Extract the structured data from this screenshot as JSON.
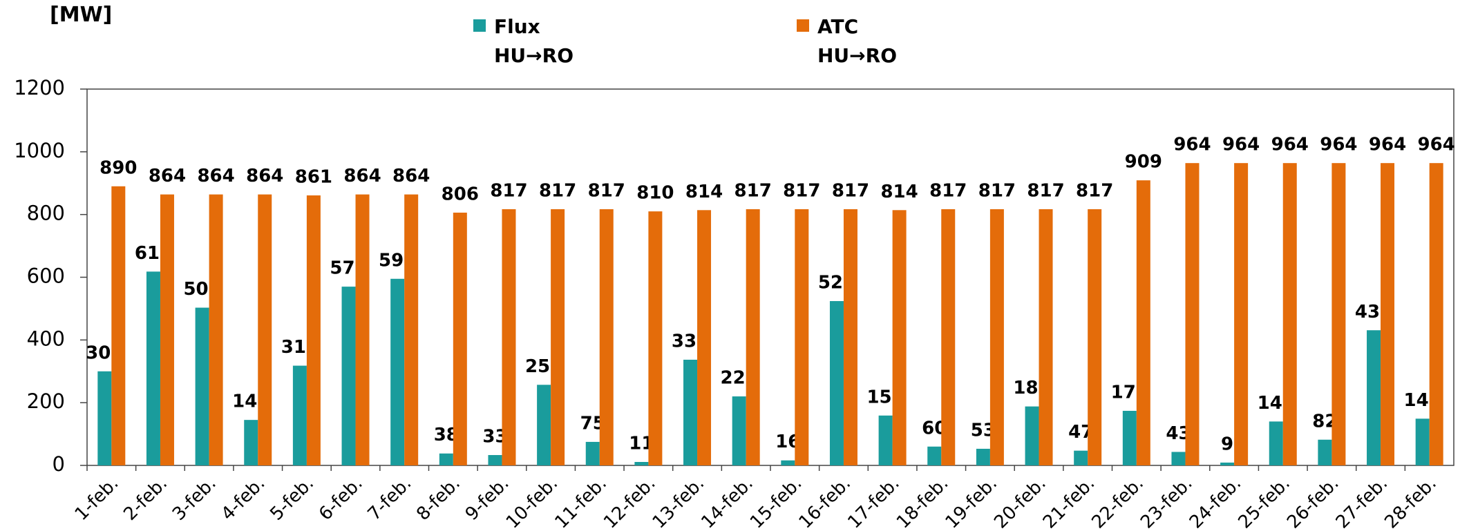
{
  "chart_data": {
    "type": "bar",
    "y_label": "[MW]",
    "categories": [
      "1-feb.",
      "2-feb.",
      "3-feb.",
      "4-feb.",
      "5-feb.",
      "6-feb.",
      "7-feb.",
      "8-feb.",
      "9-feb.",
      "10-feb.",
      "11-feb.",
      "12-feb.",
      "13-feb.",
      "14-feb.",
      "15-feb.",
      "16-feb.",
      "17-feb.",
      "18-feb.",
      "19-feb.",
      "20-feb.",
      "21-feb.",
      "22-feb.",
      "23-feb.",
      "24-feb.",
      "25-feb.",
      "26-feb.",
      "27-feb.",
      "28-feb."
    ],
    "series": [
      {
        "name": "Flux\nHU→RO",
        "color": "#1a9c9c",
        "values": [
          300,
          618,
          503,
          145,
          318,
          570,
          595,
          38,
          33,
          257,
          75,
          11,
          337,
          220,
          16,
          524,
          159,
          60,
          53,
          188,
          47,
          174,
          43,
          9,
          140,
          82,
          431,
          149
        ]
      },
      {
        "name": "ATC\nHU→RO",
        "color": "#e46c0a",
        "values": [
          890,
          864,
          864,
          864,
          861,
          864,
          864,
          806,
          817,
          817,
          817,
          810,
          814,
          817,
          817,
          817,
          814,
          817,
          817,
          817,
          817,
          909,
          964,
          964,
          964,
          964,
          964,
          964
        ]
      }
    ],
    "ylim": [
      0,
      1200
    ],
    "yticks": [
      0,
      200,
      400,
      600,
      800,
      1000,
      1200
    ],
    "grid": false
  }
}
